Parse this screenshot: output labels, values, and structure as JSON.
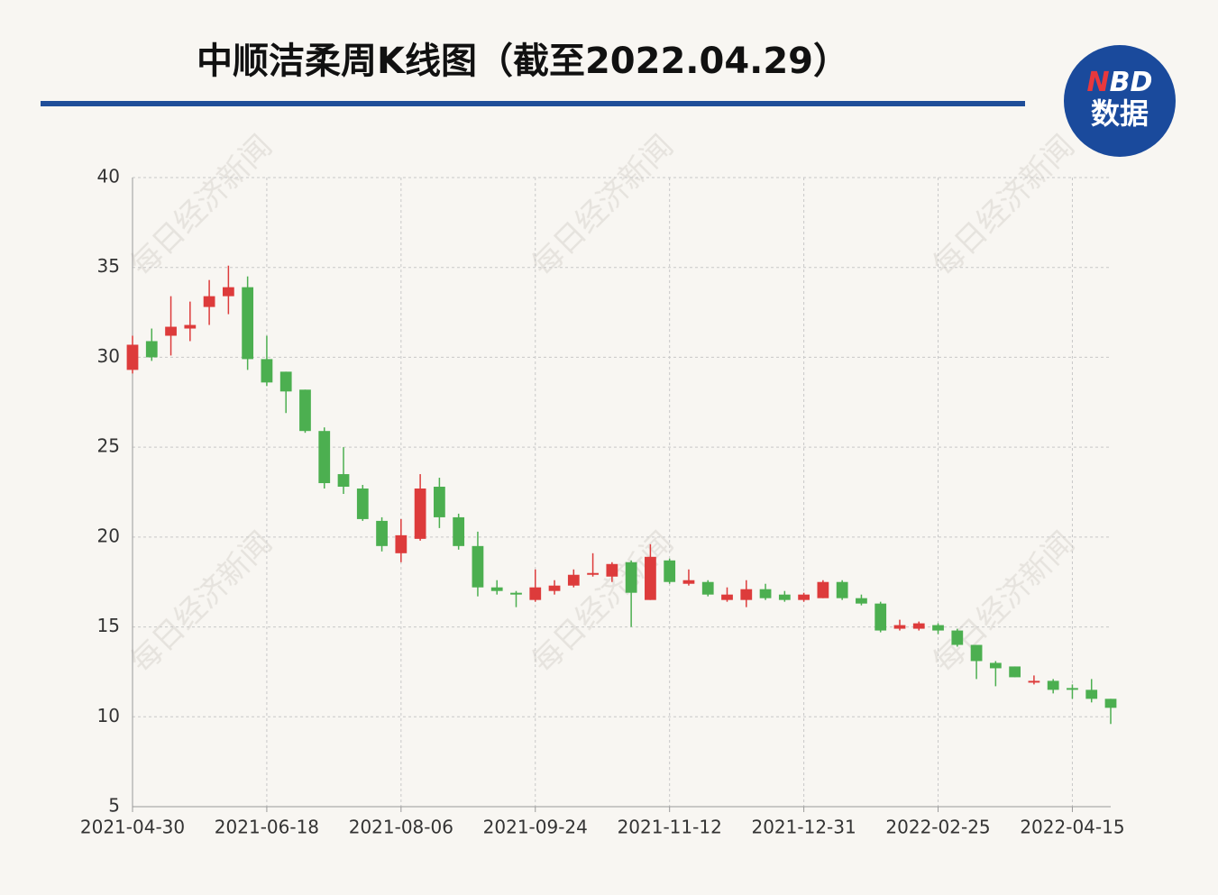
{
  "chart_data": {
    "type": "candlestick",
    "title": "中顺洁柔周K线图（截至2022.04.29）",
    "watermark": "每日经济新闻",
    "logo": {
      "brand": "NBD",
      "label": "数据"
    },
    "categories": [
      "2021-04-30",
      null,
      null,
      null,
      null,
      null,
      null,
      "2021-06-18",
      null,
      null,
      null,
      null,
      null,
      null,
      "2021-08-06",
      null,
      null,
      null,
      null,
      null,
      null,
      "2021-09-24",
      null,
      null,
      null,
      null,
      null,
      null,
      "2021-11-12",
      null,
      null,
      null,
      null,
      null,
      null,
      "2021-12-31",
      null,
      null,
      null,
      null,
      null,
      null,
      "2022-02-25",
      null,
      null,
      null,
      null,
      null,
      null,
      "2022-04-15",
      null,
      null
    ],
    "open": [
      29.3,
      30.9,
      31.2,
      31.6,
      32.8,
      33.4,
      33.9,
      29.9,
      29.2,
      28.2,
      25.9,
      23.5,
      22.7,
      20.9,
      19.1,
      19.9,
      22.8,
      21.1,
      19.5,
      17.2,
      16.9,
      16.5,
      17.0,
      17.3,
      17.9,
      17.8,
      18.6,
      16.5,
      18.7,
      17.4,
      17.5,
      16.5,
      16.5,
      17.1,
      16.8,
      16.5,
      16.6,
      17.5,
      16.6,
      16.3,
      14.9,
      14.9,
      15.1,
      14.8,
      14.0,
      13.0,
      12.8,
      11.9,
      12.0,
      11.6,
      11.5,
      11.0
    ],
    "high": [
      31.2,
      31.6,
      33.4,
      33.1,
      34.3,
      35.1,
      34.5,
      31.2,
      29.2,
      28.2,
      26.1,
      25.0,
      22.9,
      21.1,
      21.0,
      23.5,
      23.3,
      21.3,
      20.3,
      17.6,
      17.0,
      18.2,
      17.6,
      18.2,
      19.1,
      18.6,
      18.7,
      19.6,
      18.8,
      18.2,
      17.6,
      17.2,
      17.6,
      17.4,
      17.0,
      16.9,
      17.6,
      17.6,
      16.8,
      16.4,
      15.4,
      15.3,
      15.2,
      14.9,
      14.0,
      13.1,
      12.8,
      12.3,
      12.1,
      11.8,
      12.1,
      11.0
    ],
    "low": [
      29.1,
      29.8,
      30.1,
      30.9,
      31.8,
      32.4,
      29.3,
      28.4,
      26.9,
      25.8,
      22.7,
      22.4,
      20.9,
      19.2,
      18.6,
      19.8,
      20.5,
      19.3,
      16.7,
      16.8,
      16.1,
      16.4,
      16.8,
      17.2,
      17.8,
      17.5,
      15.0,
      16.5,
      17.4,
      17.3,
      16.7,
      16.4,
      16.1,
      16.5,
      16.4,
      16.4,
      16.6,
      16.5,
      16.2,
      14.7,
      14.8,
      14.8,
      14.6,
      13.9,
      12.1,
      11.7,
      12.2,
      11.8,
      11.3,
      11.0,
      10.8,
      9.6
    ],
    "close": [
      30.7,
      30.0,
      31.7,
      31.8,
      33.4,
      33.9,
      29.9,
      28.6,
      28.1,
      25.9,
      23.0,
      22.8,
      21.0,
      19.5,
      20.1,
      22.7,
      21.1,
      19.5,
      17.2,
      17.0,
      16.8,
      17.2,
      17.3,
      17.9,
      18.0,
      18.5,
      16.9,
      18.9,
      17.5,
      17.6,
      16.8,
      16.8,
      17.1,
      16.6,
      16.5,
      16.8,
      17.5,
      16.6,
      16.3,
      14.8,
      15.1,
      15.2,
      14.8,
      14.0,
      13.1,
      12.7,
      12.2,
      12.0,
      11.5,
      11.5,
      11.0,
      10.5
    ],
    "up_color": "#dd3b3b",
    "down_color": "#4caf50",
    "ylim": [
      5,
      40
    ],
    "yticks": [
      5,
      10,
      15,
      20,
      25,
      30,
      35,
      40
    ],
    "grid": true
  }
}
